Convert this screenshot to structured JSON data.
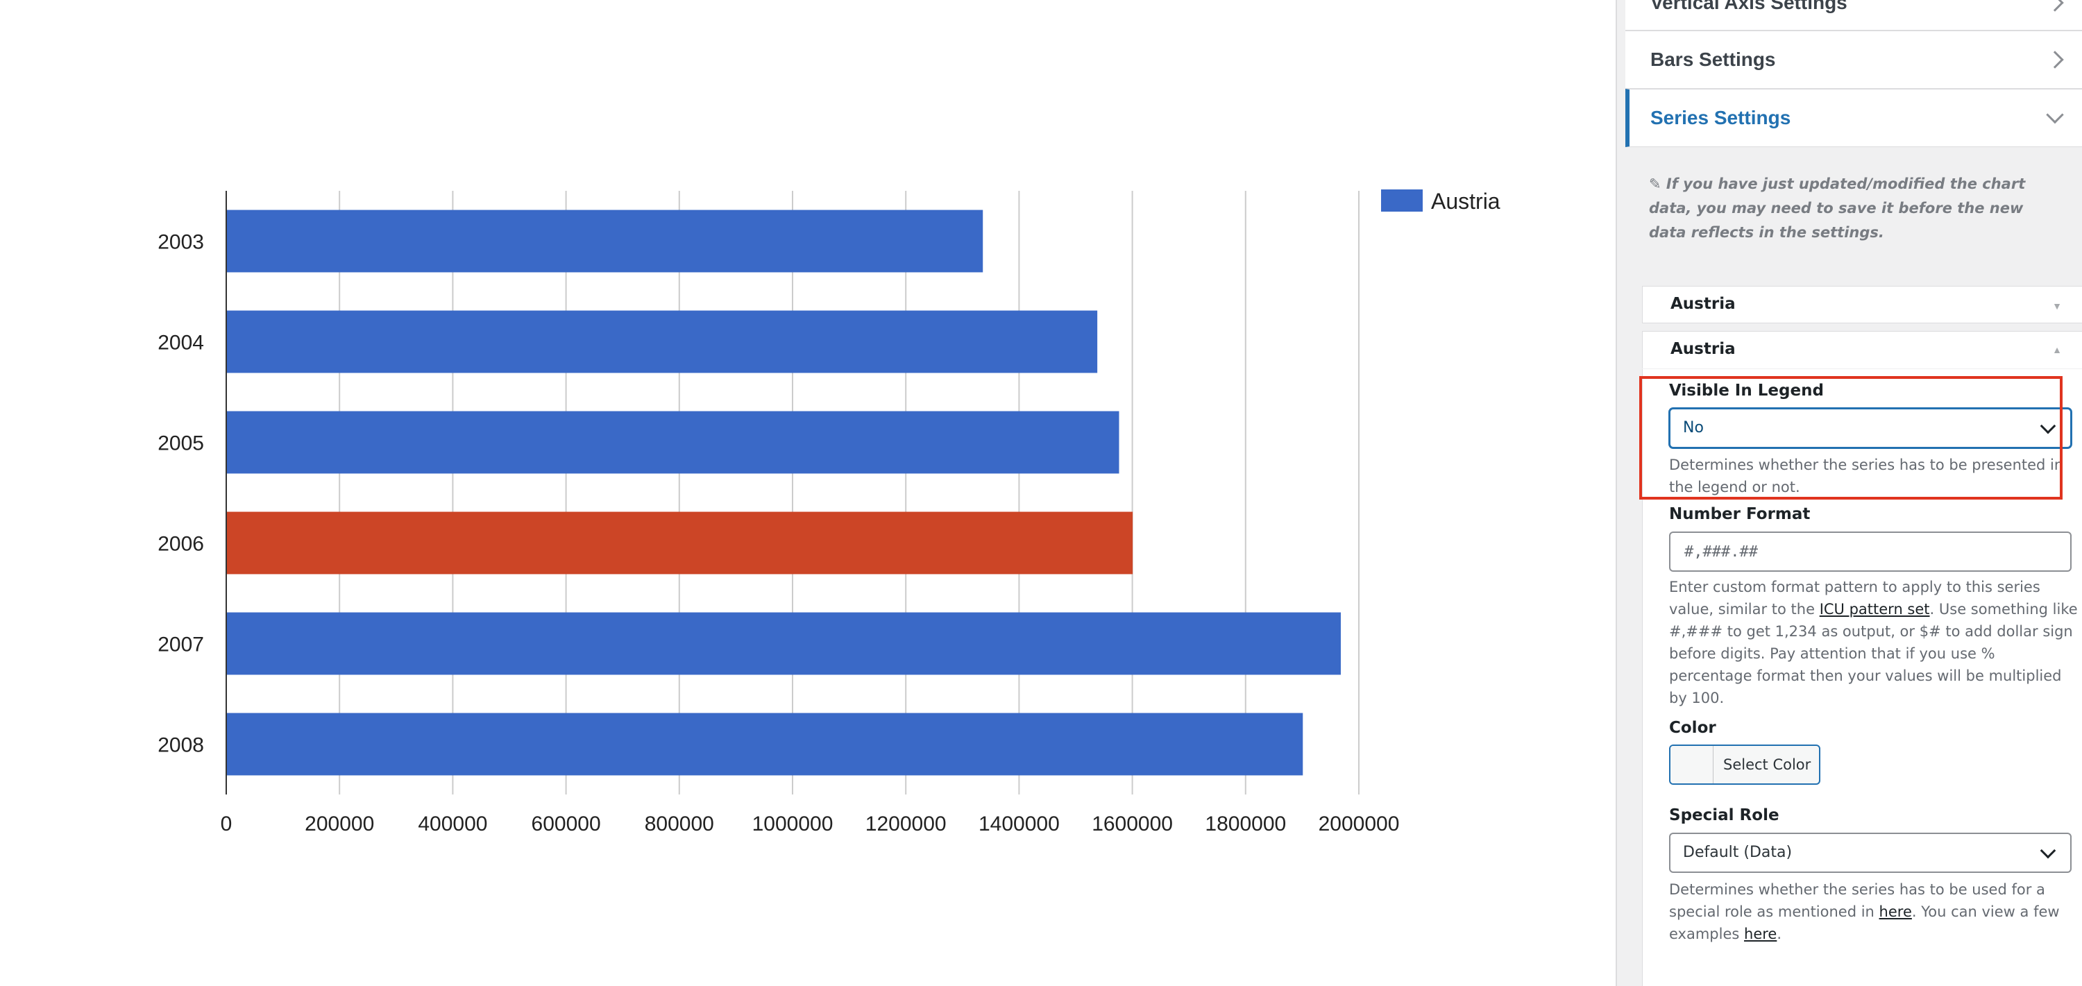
{
  "chart_data": {
    "type": "bar",
    "orientation": "horizontal",
    "categories": [
      "2003",
      "2004",
      "2005",
      "2006",
      "2007",
      "2008"
    ],
    "series": [
      {
        "name": "Austria",
        "values": [
          1336060,
          1538156,
          1576579,
          1600652,
          1968113,
          1901067
        ],
        "color": "#3a69c7"
      }
    ],
    "highlighted_category": "2006",
    "highlight_color": "#cc4526",
    "x_ticks": [
      "0",
      "200000",
      "400000",
      "600000",
      "800000",
      "1000000",
      "1200000",
      "1400000",
      "1600000",
      "1800000",
      "2000000"
    ],
    "xlim": [
      0,
      2000000
    ],
    "grid": true,
    "legend": "top-right",
    "title": "",
    "xlabel": "",
    "ylabel": ""
  },
  "panel": {
    "accordions": [
      {
        "label": "Vertical Axis Settings"
      },
      {
        "label": "Bars Settings"
      },
      {
        "label": "Series Settings"
      }
    ],
    "series_note": "If you have just updated/modified the chart data, you may need to save it before the new data reflects in the settings.",
    "series_items": [
      {
        "label": "Austria",
        "arrow": "▼"
      },
      {
        "label": "Austria",
        "arrow": "▲"
      }
    ],
    "visible_in_legend": {
      "label": "Visible In Legend",
      "value": "No",
      "help": "Determines whether the series has to be presented in the legend or not."
    },
    "number_format": {
      "label": "Number Format",
      "placeholder": "#,###.##",
      "help_part1": "Enter custom format pattern to apply to this series value, similar to the ",
      "help_link": "ICU pattern set",
      "help_part2": ". Use something like #,### to get 1,234 as output, or $# to add dollar sign before digits. Pay attention that if you use % percentage format then your values will be multiplied by 100."
    },
    "color": {
      "label": "Color",
      "button_label": "Select Color"
    },
    "special_role": {
      "label": "Special Role",
      "value": "Default (Data)",
      "help_part1": "Determines whether the series has to be used for a special role as mentioned in ",
      "help_link1": "here",
      "help_part2": ". You can view a few examples ",
      "help_link2": "here",
      "help_part3": "."
    }
  }
}
